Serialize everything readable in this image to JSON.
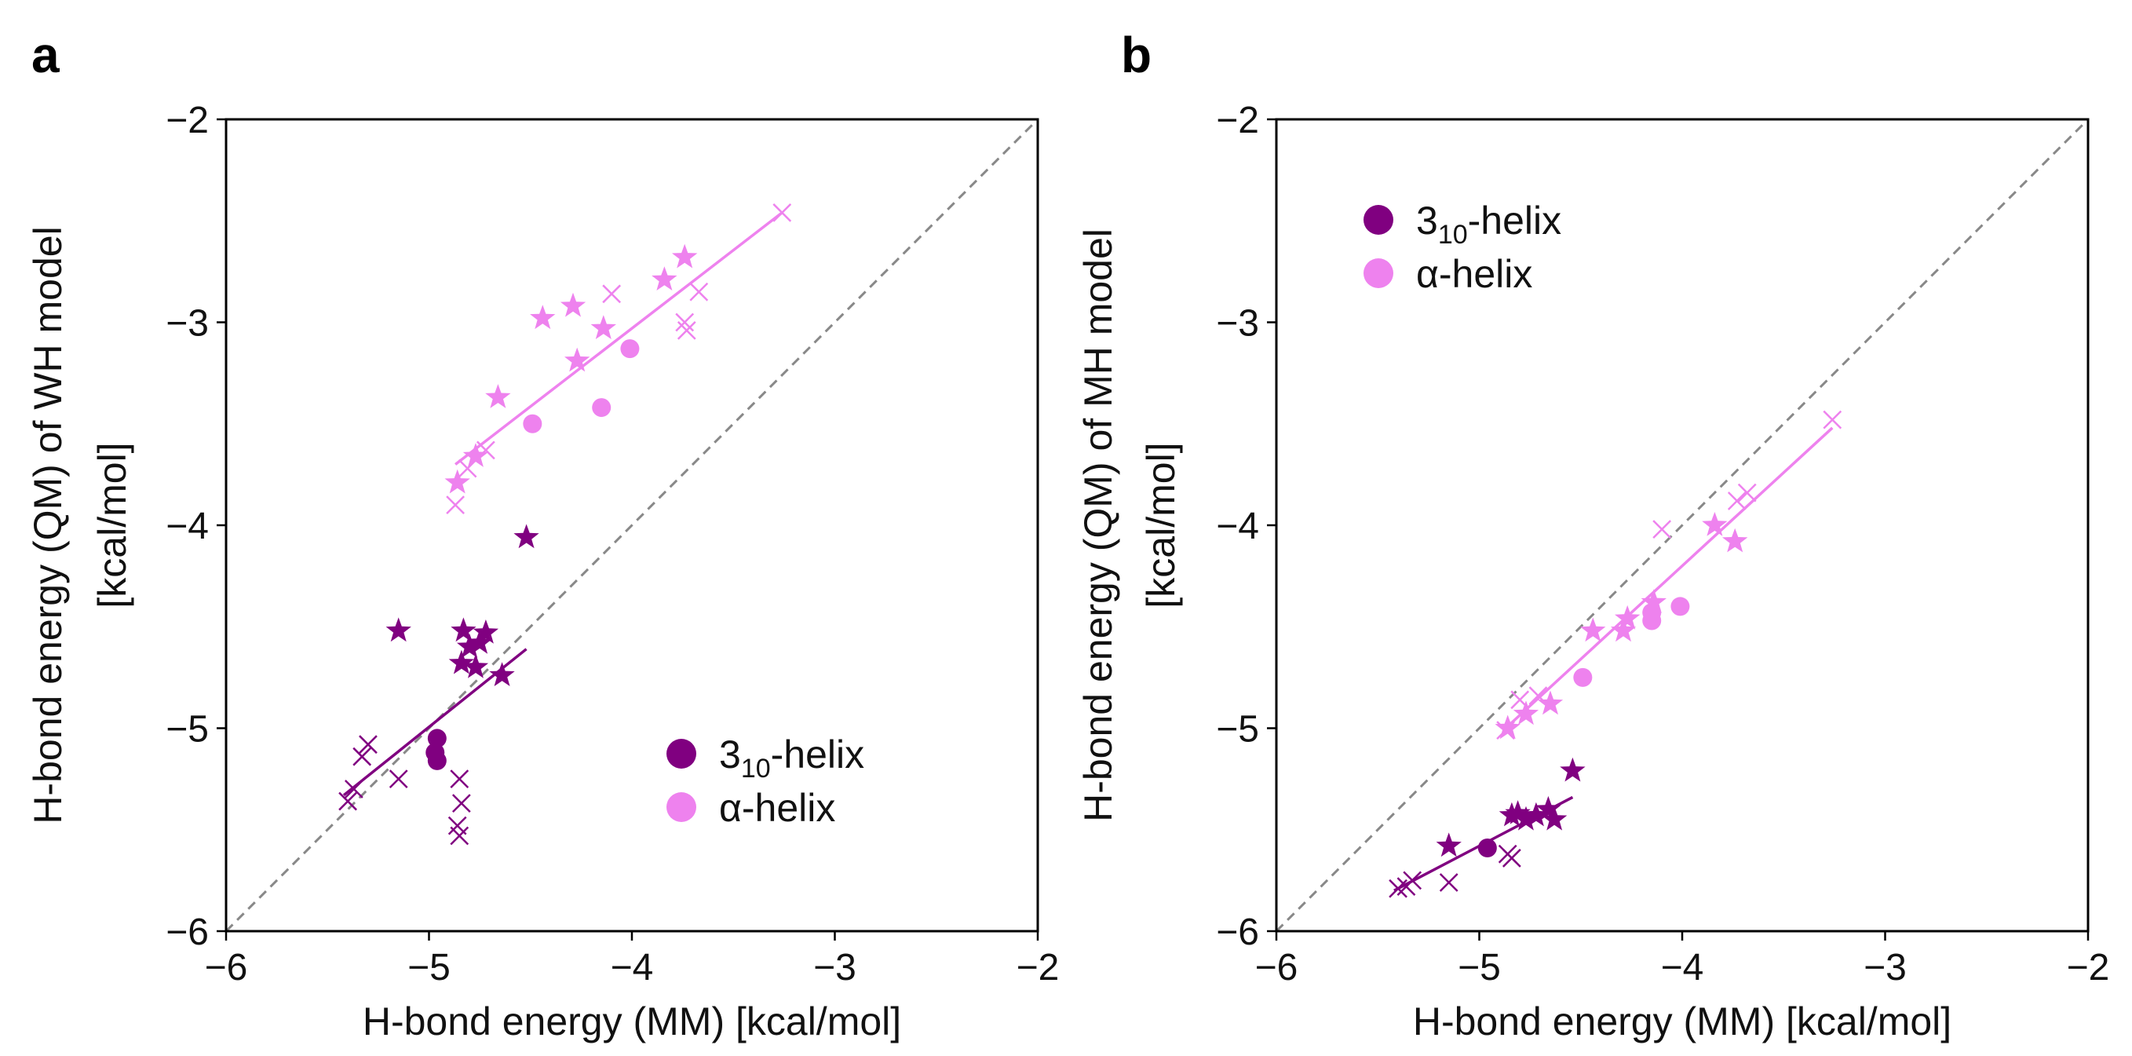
{
  "colors": {
    "helix_310": "#800080",
    "helix_alpha": "#ee82ee",
    "diagonal": "#888888",
    "frame": "#000000"
  },
  "chart_data": [
    {
      "type": "scatter",
      "panel_label": "a",
      "xlabel": "H-bond energy (MM) [kcal/mol]",
      "ylabel_line1": "H-bond energy (QM) of WH model",
      "ylabel_line2": "[kcal/mol]",
      "xlim": [
        -6,
        -2
      ],
      "ylim": [
        -6,
        -2
      ],
      "xticks": [
        -6,
        -5,
        -4,
        -3,
        -2
      ],
      "yticks": [
        -6,
        -5,
        -4,
        -3,
        -2
      ],
      "xtick_labels": [
        "−6",
        "−5",
        "−4",
        "−3",
        "−2"
      ],
      "ytick_labels": [
        "−6",
        "−5",
        "−4",
        "−3",
        "−2"
      ],
      "diagonal": true,
      "legend_position": "lower-right",
      "series": [
        {
          "name": "3_10-helix",
          "legend_main": "3",
          "legend_sub": "10",
          "legend_suffix": "-helix",
          "color_key": "helix_310",
          "circles": [
            [
              -4.96,
              -5.05
            ],
            [
              -4.97,
              -5.12
            ],
            [
              -4.96,
              -5.16
            ]
          ],
          "stars": [
            [
              -5.15,
              -4.52
            ],
            [
              -4.83,
              -4.52
            ],
            [
              -4.72,
              -4.53
            ],
            [
              -4.8,
              -4.6
            ],
            [
              -4.75,
              -4.58
            ],
            [
              -4.84,
              -4.68
            ],
            [
              -4.77,
              -4.7
            ],
            [
              -4.64,
              -4.74
            ],
            [
              -4.52,
              -4.06
            ]
          ],
          "crosses": [
            [
              -5.4,
              -5.36
            ],
            [
              -5.37,
              -5.3
            ],
            [
              -5.33,
              -5.14
            ],
            [
              -5.3,
              -5.08
            ],
            [
              -5.15,
              -5.25
            ],
            [
              -4.85,
              -5.25
            ],
            [
              -4.84,
              -5.37
            ],
            [
              -4.86,
              -5.48
            ],
            [
              -4.85,
              -5.53
            ]
          ],
          "fit": [
            [
              -5.42,
              -5.33
            ],
            [
              -4.52,
              -4.61
            ]
          ]
        },
        {
          "name": "α-helix",
          "legend_main": "α-helix",
          "legend_sub": "",
          "legend_suffix": "",
          "color_key": "helix_alpha",
          "circles": [
            [
              -4.49,
              -3.5
            ],
            [
              -4.15,
              -3.42
            ],
            [
              -4.01,
              -3.13
            ]
          ],
          "stars": [
            [
              -4.86,
              -3.79
            ],
            [
              -4.77,
              -3.66
            ],
            [
              -4.66,
              -3.37
            ],
            [
              -4.44,
              -2.98
            ],
            [
              -4.29,
              -2.92
            ],
            [
              -4.27,
              -3.19
            ],
            [
              -4.14,
              -3.03
            ],
            [
              -3.84,
              -2.79
            ],
            [
              -3.74,
              -2.68
            ]
          ],
          "crosses": [
            [
              -4.87,
              -3.9
            ],
            [
              -4.72,
              -3.63
            ],
            [
              -4.1,
              -2.86
            ],
            [
              -3.74,
              -3.0
            ],
            [
              -3.73,
              -3.04
            ],
            [
              -3.67,
              -2.85
            ],
            [
              -3.26,
              -2.46
            ],
            [
              -4.81,
              -3.72
            ]
          ],
          "fit": [
            [
              -4.87,
              -3.7
            ],
            [
              -3.26,
              -2.46
            ]
          ]
        }
      ]
    },
    {
      "type": "scatter",
      "panel_label": "b",
      "xlabel": "H-bond energy (MM) [kcal/mol]",
      "ylabel_line1": "H-bond energy (QM) of MH model",
      "ylabel_line2": "[kcal/mol]",
      "xlim": [
        -6,
        -2
      ],
      "ylim": [
        -6,
        -2
      ],
      "xticks": [
        -6,
        -5,
        -4,
        -3,
        -2
      ],
      "yticks": [
        -6,
        -5,
        -4,
        -3,
        -2
      ],
      "xtick_labels": [
        "−6",
        "−5",
        "−4",
        "−3",
        "−2"
      ],
      "ytick_labels": [
        "−6",
        "−5",
        "−4",
        "−3",
        "−2"
      ],
      "diagonal": true,
      "legend_position": "upper-left",
      "series": [
        {
          "name": "3_10-helix",
          "legend_main": "3",
          "legend_sub": "10",
          "legend_suffix": "-helix",
          "color_key": "helix_310",
          "circles": [
            [
              -4.96,
              -5.59
            ]
          ],
          "stars": [
            [
              -5.15,
              -5.58
            ],
            [
              -4.84,
              -5.43
            ],
            [
              -4.81,
              -5.42
            ],
            [
              -4.77,
              -5.45
            ],
            [
              -4.72,
              -5.43
            ],
            [
              -4.66,
              -5.4
            ],
            [
              -4.63,
              -5.45
            ],
            [
              -4.54,
              -5.21
            ]
          ],
          "crosses": [
            [
              -5.4,
              -5.79
            ],
            [
              -5.36,
              -5.78
            ],
            [
              -5.33,
              -5.75
            ],
            [
              -5.15,
              -5.76
            ],
            [
              -4.86,
              -5.62
            ],
            [
              -4.84,
              -5.64
            ]
          ],
          "fit": [
            [
              -5.42,
              -5.8
            ],
            [
              -4.54,
              -5.34
            ]
          ]
        },
        {
          "name": "α-helix",
          "legend_main": "α-helix",
          "legend_sub": "",
          "legend_suffix": "",
          "color_key": "helix_alpha",
          "circles": [
            [
              -4.49,
              -4.75
            ],
            [
              -4.15,
              -4.47
            ],
            [
              -4.15,
              -4.43
            ],
            [
              -4.01,
              -4.4
            ]
          ],
          "stars": [
            [
              -4.86,
              -5.0
            ],
            [
              -4.77,
              -4.93
            ],
            [
              -4.65,
              -4.88
            ],
            [
              -4.44,
              -4.52
            ],
            [
              -4.29,
              -4.52
            ],
            [
              -4.27,
              -4.46
            ],
            [
              -4.14,
              -4.38
            ],
            [
              -3.84,
              -4.0
            ],
            [
              -3.74,
              -4.08
            ]
          ],
          "crosses": [
            [
              -4.87,
              -5.01
            ],
            [
              -4.8,
              -4.86
            ],
            [
              -4.71,
              -4.84
            ],
            [
              -4.1,
              -4.02
            ],
            [
              -3.73,
              -3.88
            ],
            [
              -3.68,
              -3.84
            ],
            [
              -3.26,
              -3.48
            ]
          ],
          "fit": [
            [
              -4.87,
              -5.0
            ],
            [
              -3.26,
              -3.52
            ]
          ]
        }
      ]
    }
  ]
}
